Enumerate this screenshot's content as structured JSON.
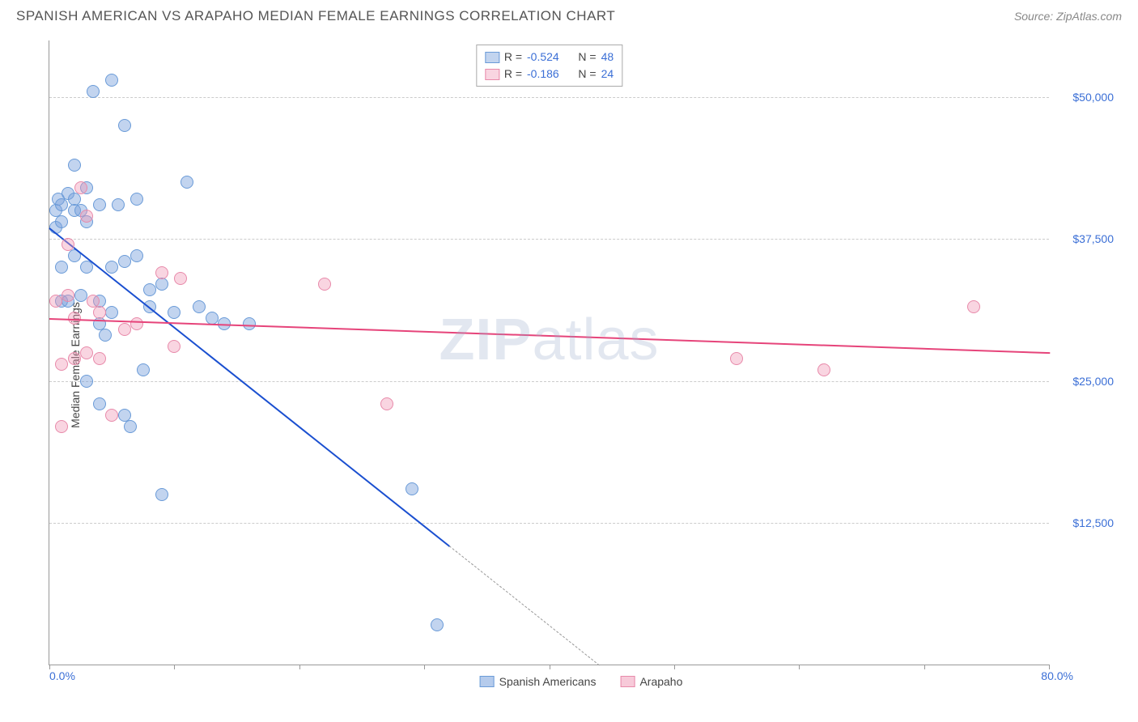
{
  "header": {
    "title": "SPANISH AMERICAN VS ARAPAHO MEDIAN FEMALE EARNINGS CORRELATION CHART",
    "source": "Source: ZipAtlas.com"
  },
  "watermark": {
    "prefix": "ZIP",
    "suffix": "atlas"
  },
  "chart": {
    "type": "scatter",
    "ylabel": "Median Female Earnings",
    "xlim": [
      0,
      80
    ],
    "ylim": [
      0,
      55000
    ],
    "x_tick_label_min": "0.0%",
    "x_tick_label_max": "80.0%",
    "x_minor_ticks": [
      0,
      10,
      20,
      30,
      40,
      50,
      60,
      70,
      80
    ],
    "y_gridlines": [
      12500,
      25000,
      37500,
      50000
    ],
    "y_tick_labels": [
      "$12,500",
      "$25,000",
      "$37,500",
      "$50,000"
    ],
    "background_color": "#ffffff",
    "grid_color": "#cccccc",
    "axis_color": "#999999",
    "tick_label_color": "#3b6fd6",
    "series": [
      {
        "name": "Spanish Americans",
        "fill_color": "rgba(120,160,220,0.45)",
        "stroke_color": "#6a9bd8",
        "trend_color": "#1a4fd0",
        "marker_radius": 8,
        "correlation_r": "-0.524",
        "correlation_n": "48",
        "trendline": {
          "x1": 0,
          "y1": 38500,
          "x2": 32,
          "y2": 10500
        },
        "trendline_dashed": {
          "x1": 32,
          "y1": 10500,
          "x2": 44,
          "y2": 0
        },
        "points": [
          [
            0.5,
            40000
          ],
          [
            0.5,
            38500
          ],
          [
            0.7,
            41000
          ],
          [
            1,
            39000
          ],
          [
            1,
            40500
          ],
          [
            1.5,
            41500
          ],
          [
            1,
            32000
          ],
          [
            1.5,
            32000
          ],
          [
            2,
            40000
          ],
          [
            2,
            41000
          ],
          [
            2,
            44000
          ],
          [
            2.5,
            40000
          ],
          [
            2.5,
            32500
          ],
          [
            3,
            35000
          ],
          [
            3,
            42000
          ],
          [
            3,
            39000
          ],
          [
            3.5,
            50500
          ],
          [
            4,
            40500
          ],
          [
            4,
            32000
          ],
          [
            4,
            30000
          ],
          [
            4.5,
            29000
          ],
          [
            5,
            51500
          ],
          [
            5,
            35000
          ],
          [
            5,
            31000
          ],
          [
            5.5,
            40500
          ],
          [
            6,
            47500
          ],
          [
            6,
            35500
          ],
          [
            6,
            22000
          ],
          [
            6.5,
            21000
          ],
          [
            7,
            41000
          ],
          [
            7,
            36000
          ],
          [
            7.5,
            26000
          ],
          [
            8,
            31500
          ],
          [
            8,
            33000
          ],
          [
            9,
            15000
          ],
          [
            9,
            33500
          ],
          [
            10,
            31000
          ],
          [
            11,
            42500
          ],
          [
            12,
            31500
          ],
          [
            13,
            30500
          ],
          [
            14,
            30000
          ],
          [
            16,
            30000
          ],
          [
            29,
            15500
          ],
          [
            31,
            3500
          ],
          [
            3,
            25000
          ],
          [
            4,
            23000
          ],
          [
            1,
            35000
          ],
          [
            2,
            36000
          ]
        ]
      },
      {
        "name": "Arapaho",
        "fill_color": "rgba(240,150,180,0.4)",
        "stroke_color": "#e88aaa",
        "trend_color": "#e6447a",
        "marker_radius": 8,
        "correlation_r": "-0.186",
        "correlation_n": "24",
        "trendline": {
          "x1": 0,
          "y1": 30500,
          "x2": 80,
          "y2": 27500
        },
        "points": [
          [
            0.5,
            32000
          ],
          [
            1,
            26500
          ],
          [
            1,
            21000
          ],
          [
            1.5,
            37000
          ],
          [
            1.5,
            32500
          ],
          [
            2,
            30500
          ],
          [
            2,
            27000
          ],
          [
            2.5,
            42000
          ],
          [
            3,
            39500
          ],
          [
            3,
            27500
          ],
          [
            3.5,
            32000
          ],
          [
            4,
            27000
          ],
          [
            5,
            22000
          ],
          [
            6,
            29500
          ],
          [
            9,
            34500
          ],
          [
            10,
            28000
          ],
          [
            10.5,
            34000
          ],
          [
            22,
            33500
          ],
          [
            27,
            23000
          ],
          [
            55,
            27000
          ],
          [
            62,
            26000
          ],
          [
            74,
            31500
          ],
          [
            4,
            31000
          ],
          [
            7,
            30000
          ]
        ]
      }
    ],
    "legend_top_labels": {
      "r": "R =",
      "n": "N ="
    },
    "legend_bottom": [
      {
        "label": "Spanish Americans",
        "fill": "rgba(120,160,220,0.55)",
        "stroke": "#6a9bd8"
      },
      {
        "label": "Arapaho",
        "fill": "rgba(240,150,180,0.5)",
        "stroke": "#e88aaa"
      }
    ]
  }
}
